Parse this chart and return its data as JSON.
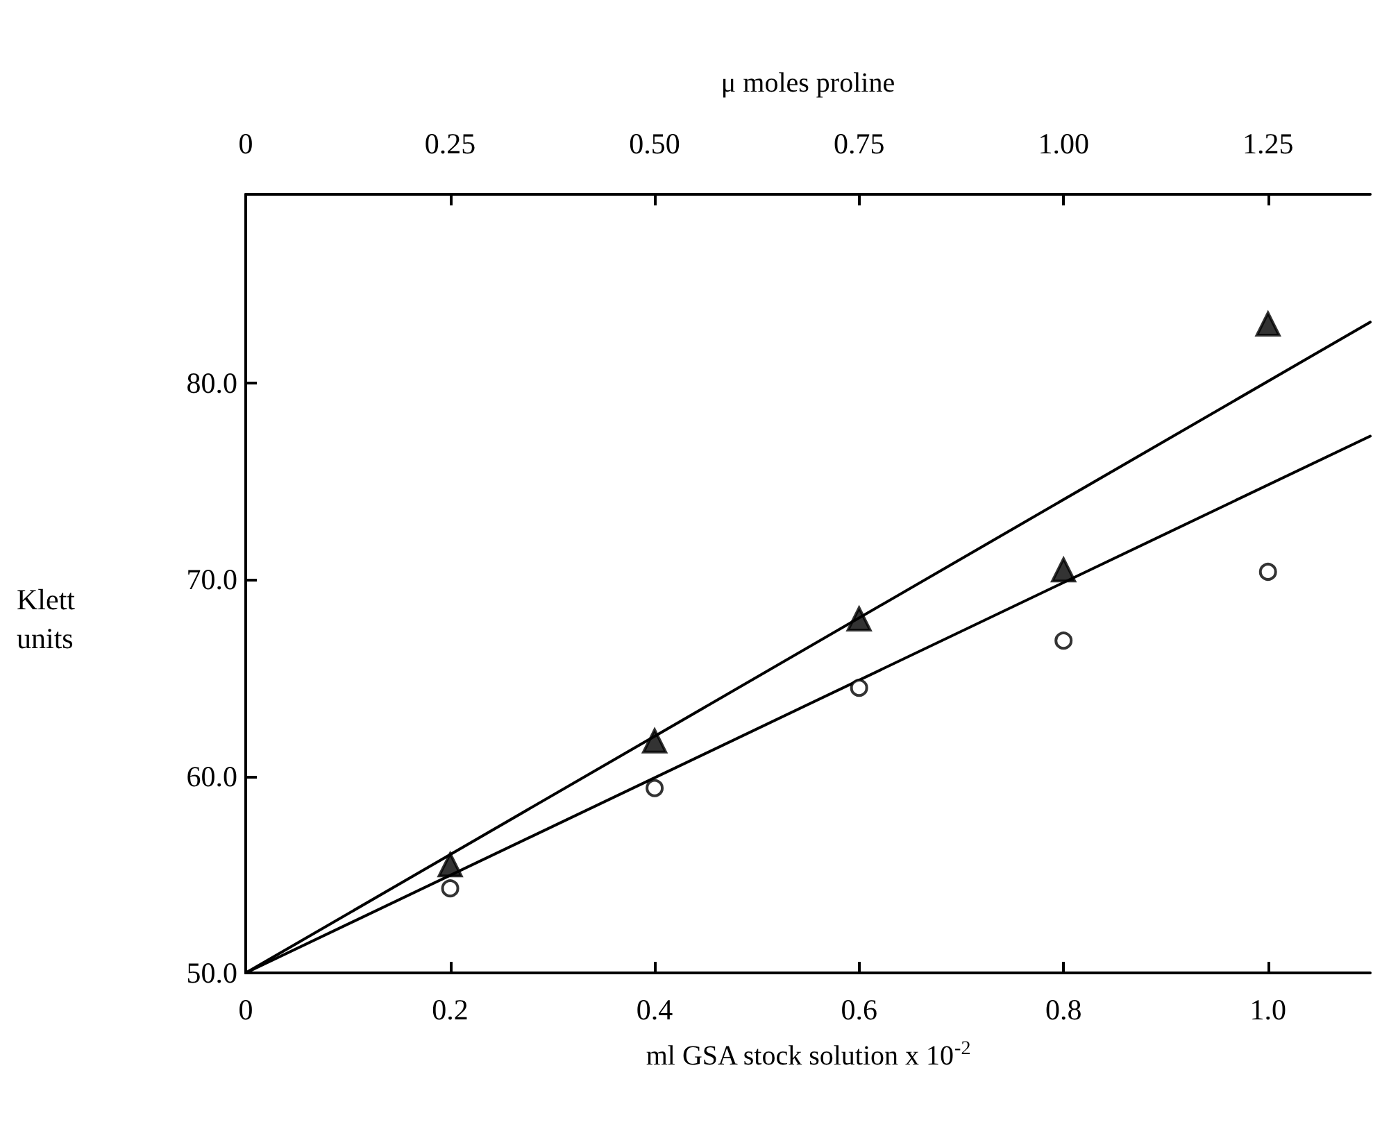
{
  "chart_data": {
    "type": "scatter",
    "xlabel": "ml GSA stock solution x 10$^{-2}$",
    "x2label": "μ moles proline",
    "ylabel": "Klett\nunits",
    "xlim": [
      0,
      1.1
    ],
    "xticks": [
      0,
      {
        "value": 0.2,
        "label": "0.2"
      },
      {
        "value": 0.4,
        "label": "0.4"
      },
      {
        "value": 0.6,
        "label": "0.6"
      },
      {
        "value": 0.8,
        "label": "0.8"
      },
      {
        "value": 1.0,
        "label": "1.0"
      }
    ],
    "x2lim": [
      0,
      1.375
    ],
    "x2ticks": [
      0,
      {
        "value": 0.25,
        "label": "0.25"
      },
      {
        "value": 0.5,
        "label": "0.50"
      },
      {
        "value": 0.75,
        "label": "0.75"
      },
      {
        "value": 1.0,
        "label": "1.00"
      },
      {
        "value": 1.25,
        "label": "1.25"
      }
    ],
    "ylim": [
      50,
      89.6
    ],
    "yticks": [
      {
        "value": 50,
        "label": "50.0"
      },
      {
        "value": 60,
        "label": "60.0"
      },
      {
        "value": 70,
        "label": "70.0"
      },
      {
        "value": 80,
        "label": "80.0"
      }
    ],
    "grid": false,
    "series": [
      {
        "marker": "triangle",
        "color": "#000000",
        "x": [
          0.2,
          0.4,
          0.6,
          0.8,
          1.0
        ],
        "values": [
          55.5,
          61.8,
          68.0,
          70.5,
          83.0
        ]
      },
      {
        "marker": "circle",
        "color": "#000000",
        "x": [
          0.2,
          0.4,
          0.6,
          0.8,
          1.0
        ],
        "values": [
          54.3,
          59.4,
          64.5,
          66.9,
          70.4
        ]
      },
      {
        "type": "line",
        "marker": "none",
        "line_style": "solid",
        "color": "#000000",
        "x": [
          0,
          1.1
        ],
        "values": [
          50,
          83.1
        ]
      },
      {
        "type": "line",
        "marker": "none",
        "line_style": "solid",
        "color": "#000000",
        "x": [
          0,
          1.1
        ],
        "values": [
          50,
          77.3
        ]
      }
    ]
  }
}
